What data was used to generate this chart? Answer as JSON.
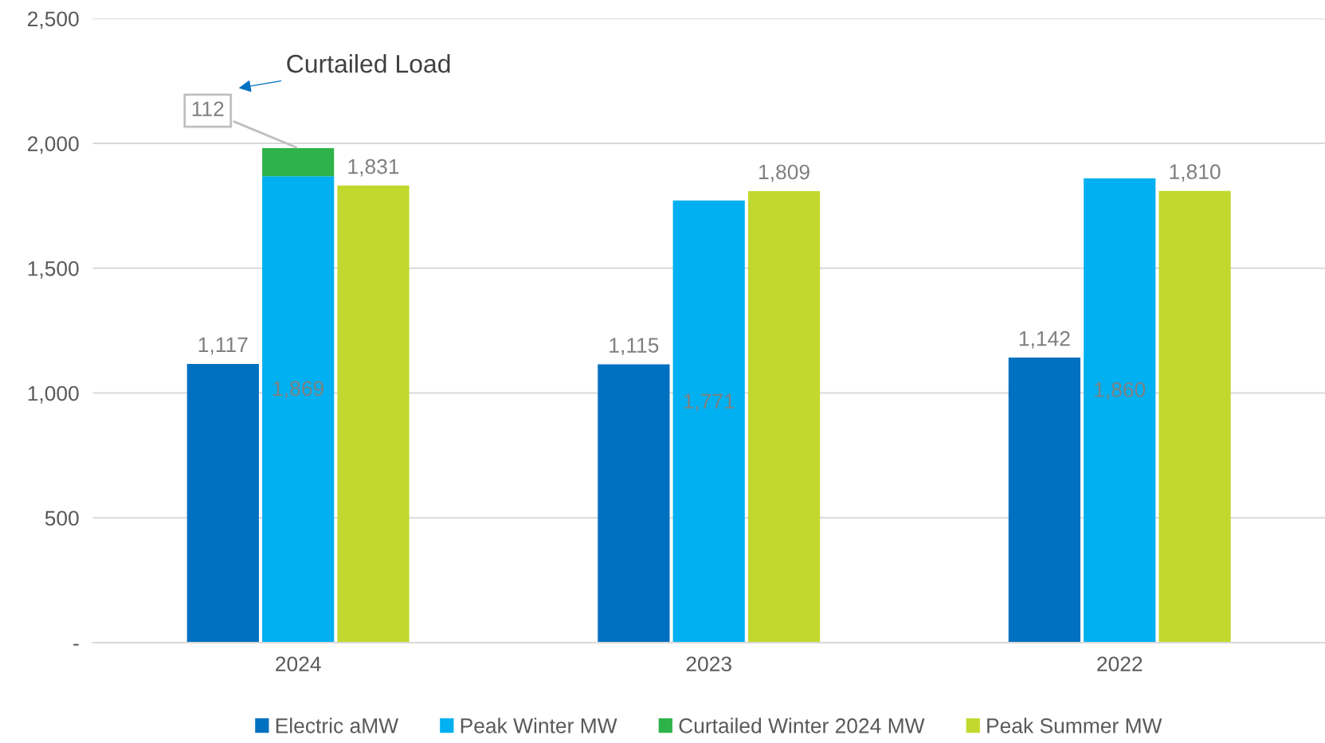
{
  "chart_data": {
    "type": "bar",
    "categories": [
      "2024",
      "2023",
      "2022"
    ],
    "series": [
      {
        "name": "Electric aMW",
        "color": "#0070c0",
        "values": [
          1117,
          1115,
          1142
        ],
        "value_labels": [
          "1,117",
          "1,115",
          "1,142"
        ]
      },
      {
        "name": "Peak Winter MW",
        "color": "#00b0f0",
        "values": [
          1869,
          1771,
          1860
        ],
        "value_labels": [
          "1,869",
          "1,771",
          "1,860"
        ]
      },
      {
        "name": "Curtailed Winter 2024 MW",
        "color": "#2db34a",
        "values": [
          112,
          null,
          null
        ],
        "base": [
          1869,
          null,
          null
        ],
        "value_labels": [
          "112",
          null,
          null
        ]
      },
      {
        "name": "Peak Summer MW",
        "color": "#c2d82e",
        "values": [
          1831,
          1809,
          1810
        ],
        "value_labels": [
          "1,831",
          "1,809",
          "1,810"
        ]
      }
    ],
    "ylim": [
      0,
      2500
    ],
    "yticks": [
      {
        "value": 0,
        "label": "-"
      },
      {
        "value": 500,
        "label": "500"
      },
      {
        "value": 1000,
        "label": "1,000"
      },
      {
        "value": 1500,
        "label": "1,500"
      },
      {
        "value": 2000,
        "label": "2,000"
      },
      {
        "value": 2500,
        "label": "2,500"
      }
    ],
    "grid": "y",
    "legend": "bottom",
    "annotations": [
      "Curtailed Load"
    ]
  }
}
